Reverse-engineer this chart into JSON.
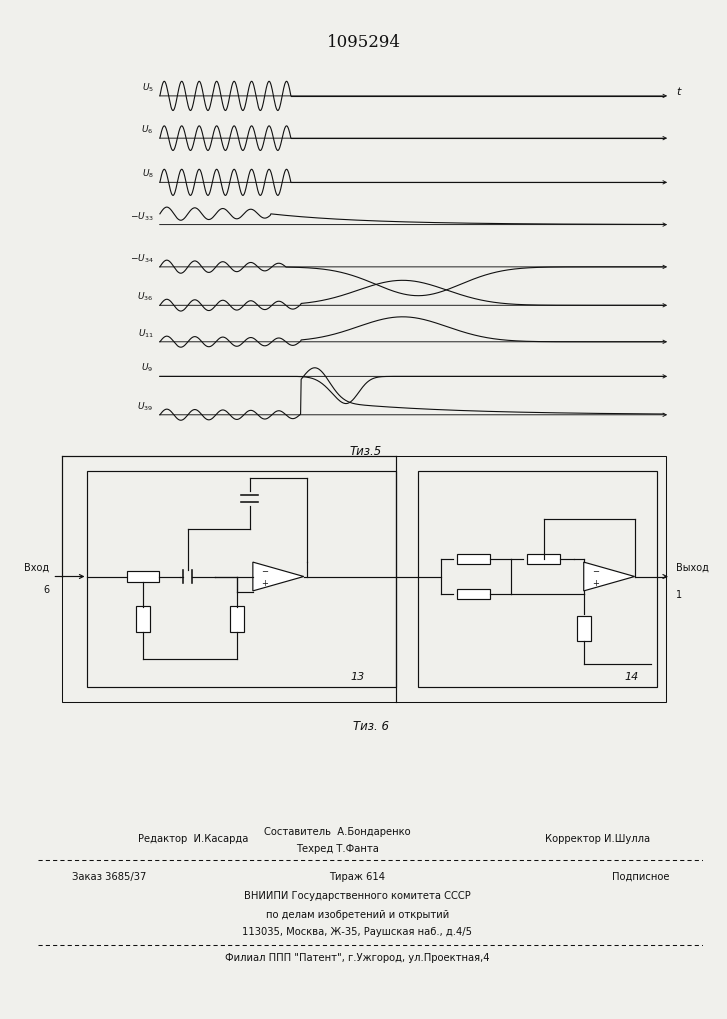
{
  "patent_number": "1095294",
  "fig5_label": "Τиз.5",
  "fig6_label": "Τиз. 6",
  "time_label": "t",
  "bg_color": "#f0f0ec",
  "line_color": "#111111",
  "text_color": "#111111",
  "editor_line": "Редактор  И.Касарда",
  "composer_line": "Составитель  А.Бондаренко",
  "techred_line": "Техред Т.Фанта",
  "corrector_line": "Корректор И.Шулла",
  "order_line": "Заказ 3685/37",
  "circulation_line": "Тираж 614",
  "subscription_line": "Подписное",
  "vniipи_line": "ВНИИПИ Государственного комитета СССР",
  "affairs_line": "по делам изобретений и открытий",
  "address_line": "113035, Москва, Ж-35, Раушская наб., д.4/5",
  "filial_line": "Филиал ППП \"Патент\", г.Ужгород, ул.Проектная,4",
  "input_label_1": "Вход",
  "input_label_2": "6",
  "output_label_1": "Выход",
  "output_label_2": "1",
  "block13": "13",
  "block14": "14"
}
